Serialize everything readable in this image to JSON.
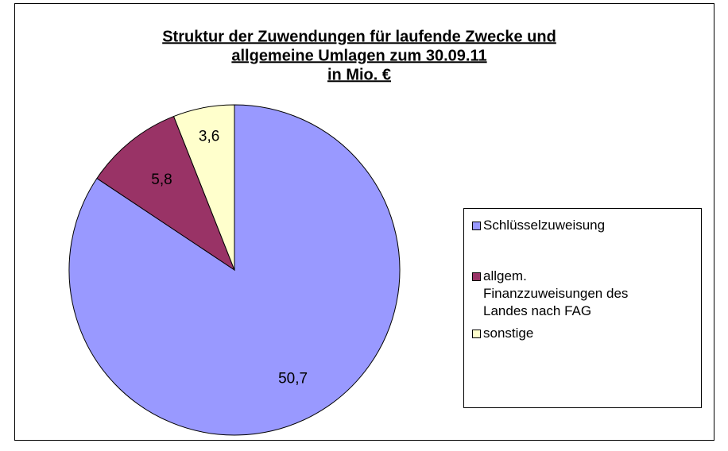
{
  "chart_data": {
    "type": "pie",
    "title": [
      "Struktur der Zuwendungen für laufende Zwecke und",
      "allgemeine Umlagen zum 30.09.11",
      "in Mio. €"
    ],
    "categories": [
      "Schlüsselzuweisung",
      "allgem. Finanzzuweisungen des Landes nach FAG",
      "sonstige"
    ],
    "values": [
      50.7,
      5.8,
      3.6
    ],
    "value_labels": [
      "50,7",
      "5,8",
      "3,6"
    ],
    "colors": [
      "#9999ff",
      "#993366",
      "#ffffcc"
    ],
    "legend": "right"
  }
}
